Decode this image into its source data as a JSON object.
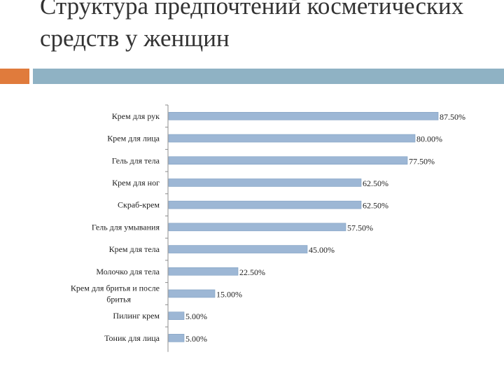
{
  "header": {
    "title": "Структура предпочтений косметических средств у женщин",
    "accent_color": "#e07b3c",
    "rule_color": "#8fb2c4"
  },
  "chart_data": {
    "type": "bar",
    "orientation": "horizontal",
    "categories": [
      "Крем для рук",
      "Крем для лица",
      "Гель для тела",
      "Крем для ног",
      "Скраб-крем",
      "Гель для умывания",
      "Крем для тела",
      "Молочко для тела",
      "Крем для бритья и  после бритья",
      "Пилинг крем",
      "Тоник для лица"
    ],
    "values": [
      87.5,
      80.0,
      77.5,
      62.5,
      62.5,
      57.5,
      45.0,
      22.5,
      15.0,
      5.0,
      5.0
    ],
    "value_labels": [
      "87.50%",
      "80.00%",
      "77.50%",
      "62.50%",
      "62.50%",
      "57.50%",
      "45.00%",
      "22.50%",
      "15.00%",
      "5.00%",
      "5.00%"
    ],
    "xlim": [
      0,
      100
    ],
    "bar_color": "#9db7d5",
    "bar_edge_color": "#7f9fc2",
    "grid": false,
    "legend": "none"
  }
}
